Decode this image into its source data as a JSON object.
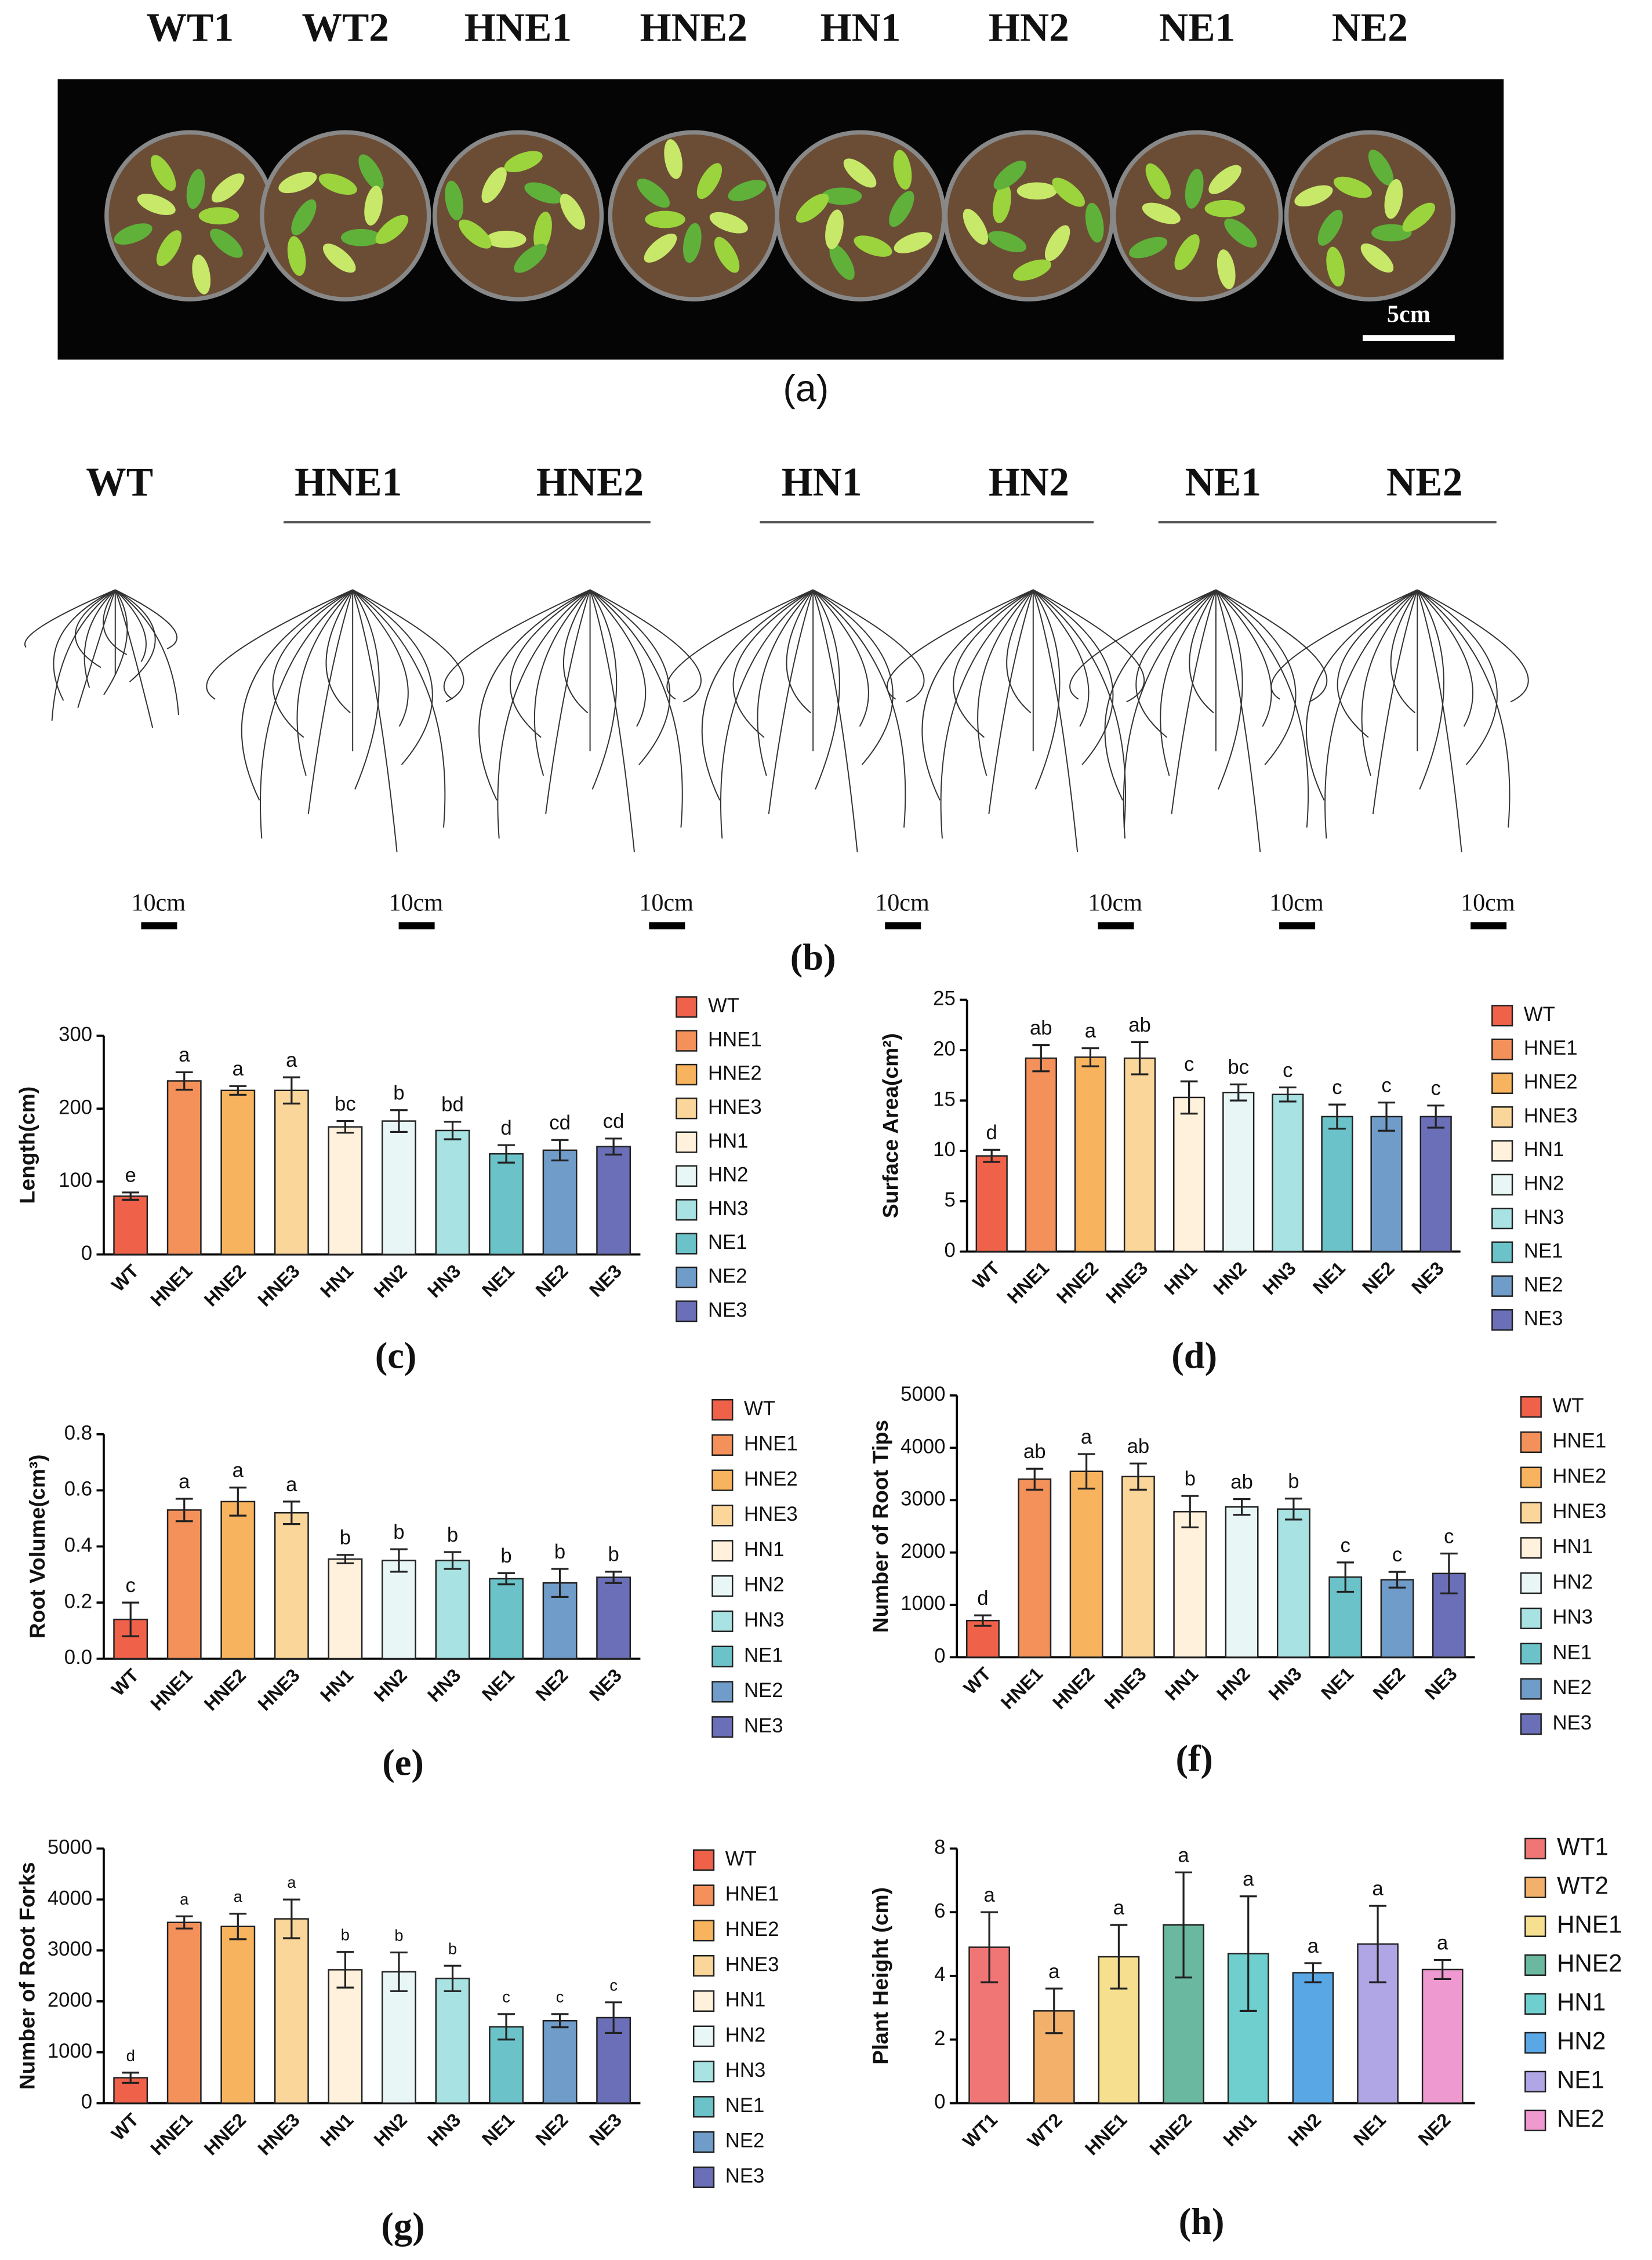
{
  "panel_a": {
    "labels": [
      "WT1",
      "WT2",
      "HNE1",
      "HNE2",
      "HN1",
      "HN2",
      "NE1",
      "NE2"
    ],
    "scale_bar": "5cm",
    "caption": "(a)"
  },
  "panel_b": {
    "labels": [
      "WT",
      "HNE1",
      "HNE2",
      "HN1",
      "HN2",
      "NE1",
      "NE2"
    ],
    "scale_bars": [
      "10cm",
      "10cm",
      "10cm",
      "10cm",
      "10cm",
      "10cm",
      "10cm"
    ],
    "caption": "(b)"
  },
  "chart_data": [
    {
      "type": "bar",
      "caption": "(c)",
      "y_label": "Length(cm)",
      "categories": [
        "WT",
        "HNE1",
        "HNE2",
        "HNE3",
        "HN1",
        "HN2",
        "HN3",
        "NE1",
        "NE2",
        "NE3"
      ],
      "values": [
        80,
        238,
        225,
        225,
        175,
        183,
        170,
        138,
        143,
        148
      ],
      "errors": [
        5,
        12,
        6,
        18,
        8,
        15,
        12,
        12,
        14,
        11
      ],
      "annotations": [
        "e",
        "a",
        "a",
        "a",
        "bc",
        "b",
        "bd",
        "d",
        "cd",
        "cd"
      ],
      "colors": [
        "#f0614a",
        "#f4915a",
        "#f7b35e",
        "#fad69a",
        "#fff1dc",
        "#e8f6f6",
        "#a8e2e2",
        "#6bc3c9",
        "#6f9cc8",
        "#6a6fb8"
      ],
      "ylim": [
        0,
        300
      ],
      "yticks": [
        0,
        100,
        200,
        300
      ]
    },
    {
      "type": "bar",
      "caption": "(d)",
      "y_label": "Surface Area(cm²)",
      "categories": [
        "WT",
        "HNE1",
        "HNE2",
        "HNE3",
        "HN1",
        "HN2",
        "HN3",
        "NE1",
        "NE2",
        "NE3"
      ],
      "values": [
        9.5,
        19.2,
        19.3,
        19.2,
        15.3,
        15.8,
        15.6,
        13.4,
        13.4,
        13.4
      ],
      "errors": [
        0.6,
        1.3,
        0.9,
        1.6,
        1.6,
        0.8,
        0.7,
        1.2,
        1.4,
        1.1
      ],
      "annotations": [
        "d",
        "ab",
        "a",
        "ab",
        "c",
        "bc",
        "c",
        "c",
        "c",
        "c"
      ],
      "colors": [
        "#f0614a",
        "#f4915a",
        "#f7b35e",
        "#fad69a",
        "#fff1dc",
        "#e8f6f6",
        "#a8e2e2",
        "#6bc3c9",
        "#6f9cc8",
        "#6a6fb8"
      ],
      "ylim": [
        0,
        25
      ],
      "yticks": [
        0,
        5,
        10,
        15,
        20,
        25
      ]
    },
    {
      "type": "bar",
      "caption": "(e)",
      "y_label": "Root Volume(cm³)",
      "categories": [
        "WT",
        "HNE1",
        "HNE2",
        "HNE3",
        "HN1",
        "HN2",
        "HN3",
        "NE1",
        "NE2",
        "NE3"
      ],
      "values": [
        0.14,
        0.53,
        0.56,
        0.52,
        0.355,
        0.35,
        0.35,
        0.285,
        0.27,
        0.29
      ],
      "errors": [
        0.06,
        0.04,
        0.05,
        0.04,
        0.015,
        0.04,
        0.03,
        0.02,
        0.05,
        0.02
      ],
      "annotations": [
        "c",
        "a",
        "a",
        "a",
        "b",
        "b",
        "b",
        "b",
        "b",
        "b"
      ],
      "colors": [
        "#f0614a",
        "#f4915a",
        "#f7b35e",
        "#fad69a",
        "#fff1dc",
        "#e8f6f6",
        "#a8e2e2",
        "#6bc3c9",
        "#6f9cc8",
        "#6a6fb8"
      ],
      "ylim": [
        0,
        0.8
      ],
      "yticks": [
        {
          "value": 0,
          "label": "0.0"
        },
        0.2,
        0.4,
        0.6,
        0.8
      ]
    },
    {
      "type": "bar",
      "caption": "(f)",
      "y_label": "Number of Root Tips",
      "categories": [
        "WT",
        "HNE1",
        "HNE2",
        "HNE3",
        "HN1",
        "HN2",
        "HN3",
        "NE1",
        "NE2",
        "NE3"
      ],
      "values": [
        700,
        3400,
        3550,
        3450,
        2780,
        2870,
        2830,
        1530,
        1480,
        1600
      ],
      "errors": [
        100,
        200,
        330,
        250,
        300,
        150,
        200,
        280,
        150,
        380
      ],
      "annotations": [
        "d",
        "ab",
        "a",
        "ab",
        "b",
        "ab",
        "b",
        "c",
        "c",
        "c"
      ],
      "colors": [
        "#f0614a",
        "#f4915a",
        "#f7b35e",
        "#fad69a",
        "#fff1dc",
        "#e8f6f6",
        "#a8e2e2",
        "#6bc3c9",
        "#6f9cc8",
        "#6a6fb8"
      ],
      "ylim": [
        0,
        5000
      ],
      "yticks": [
        0,
        1000,
        2000,
        3000,
        4000,
        5000
      ]
    },
    {
      "type": "bar",
      "caption": "(g)",
      "y_label": "Number of Root Forks",
      "categories": [
        "WT",
        "HNE1",
        "HNE2",
        "HNE3",
        "HN1",
        "HN2",
        "HN3",
        "NE1",
        "NE2",
        "NE3"
      ],
      "values": [
        500,
        3550,
        3470,
        3620,
        2620,
        2580,
        2450,
        1500,
        1620,
        1680
      ],
      "errors": [
        100,
        120,
        250,
        380,
        350,
        380,
        250,
        250,
        130,
        300
      ],
      "annotations": [
        "d",
        "a",
        "a",
        "a",
        "b",
        "b",
        "b",
        "c",
        "c",
        "c"
      ],
      "colors": [
        "#f0614a",
        "#f4915a",
        "#f7b35e",
        "#fad69a",
        "#fff1dc",
        "#e8f6f6",
        "#a8e2e2",
        "#6bc3c9",
        "#6f9cc8",
        "#6a6fb8"
      ],
      "ylim": [
        0,
        5000
      ],
      "yticks": [
        0,
        1000,
        2000,
        3000,
        4000,
        5000
      ]
    },
    {
      "type": "bar",
      "caption": "(h)",
      "y_label": "Plant Height (cm)",
      "categories": [
        "WT1",
        "WT2",
        "HNE1",
        "HNE2",
        "HN1",
        "HN2",
        "NE1",
        "NE2"
      ],
      "values": [
        4.9,
        2.9,
        4.6,
        5.6,
        4.7,
        4.1,
        5.0,
        4.2
      ],
      "errors": [
        1.1,
        0.7,
        1.0,
        1.65,
        1.8,
        0.3,
        1.2,
        0.3
      ],
      "annotations": [
        "a",
        "a",
        "a",
        "a",
        "a",
        "a",
        "a",
        "a"
      ],
      "colors": [
        "#f07575",
        "#f2b06b",
        "#f6e08f",
        "#6bb8a0",
        "#6fcfcf",
        "#5aa7e6",
        "#b0a6e6",
        "#ee9ad0"
      ],
      "ylim": [
        0,
        8
      ],
      "yticks": [
        0,
        2,
        4,
        6,
        8
      ]
    }
  ]
}
